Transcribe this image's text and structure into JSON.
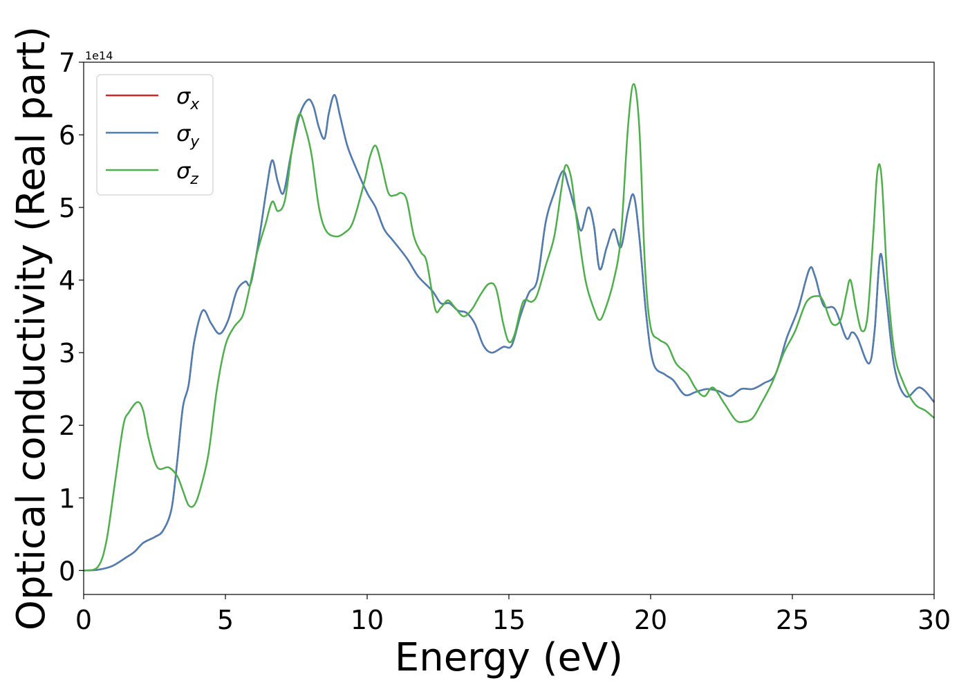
{
  "chart_data": {
    "type": "line",
    "xlabel": "Energy (eV)",
    "ylabel": "Optical conductivity (Real part)",
    "y_offset_label": "1e14",
    "xlim": [
      0,
      30
    ],
    "ylim": [
      -0.33,
      7.0
    ],
    "y_scale": 100000000000000.0,
    "x_ticks": [
      0,
      5,
      10,
      15,
      20,
      25,
      30
    ],
    "y_ticks": [
      0,
      1,
      2,
      3,
      4,
      5,
      6,
      7
    ],
    "grid": false,
    "legend_position": "top-left",
    "series": [
      {
        "name": "σx",
        "name_base": "σ",
        "name_sub": "x",
        "color": "#d62728",
        "points": [
          [
            0,
            0
          ],
          [
            0.5,
            0.01
          ],
          [
            1,
            0.06
          ],
          [
            1.5,
            0.18
          ],
          [
            1.8,
            0.26
          ],
          [
            2.1,
            0.38
          ],
          [
            2.5,
            0.46
          ],
          [
            2.8,
            0.55
          ],
          [
            3.1,
            0.85
          ],
          [
            3.3,
            1.5
          ],
          [
            3.5,
            2.25
          ],
          [
            3.7,
            2.55
          ],
          [
            3.9,
            3.15
          ],
          [
            4.2,
            3.58
          ],
          [
            4.5,
            3.4
          ],
          [
            4.8,
            3.26
          ],
          [
            5.1,
            3.45
          ],
          [
            5.4,
            3.85
          ],
          [
            5.7,
            3.98
          ],
          [
            5.9,
            3.96
          ],
          [
            6.2,
            4.6
          ],
          [
            6.45,
            5.25
          ],
          [
            6.65,
            5.65
          ],
          [
            6.85,
            5.35
          ],
          [
            7.05,
            5.2
          ],
          [
            7.3,
            5.7
          ],
          [
            7.6,
            6.25
          ],
          [
            7.9,
            6.48
          ],
          [
            8.1,
            6.4
          ],
          [
            8.3,
            6.1
          ],
          [
            8.5,
            5.95
          ],
          [
            8.65,
            6.3
          ],
          [
            8.85,
            6.55
          ],
          [
            9.05,
            6.25
          ],
          [
            9.3,
            5.85
          ],
          [
            9.6,
            5.55
          ],
          [
            10,
            5.2
          ],
          [
            10.3,
            5.0
          ],
          [
            10.6,
            4.7
          ],
          [
            10.9,
            4.55
          ],
          [
            11.4,
            4.3
          ],
          [
            11.8,
            4.05
          ],
          [
            12.3,
            3.85
          ],
          [
            12.6,
            3.68
          ],
          [
            12.9,
            3.68
          ],
          [
            13.2,
            3.58
          ],
          [
            13.5,
            3.55
          ],
          [
            13.8,
            3.4
          ],
          [
            14.1,
            3.1
          ],
          [
            14.4,
            3.0
          ],
          [
            14.8,
            3.08
          ],
          [
            15.1,
            3.1
          ],
          [
            15.4,
            3.5
          ],
          [
            15.7,
            3.82
          ],
          [
            16,
            4.0
          ],
          [
            16.3,
            4.8
          ],
          [
            16.6,
            5.2
          ],
          [
            16.9,
            5.5
          ],
          [
            17.1,
            5.3
          ],
          [
            17.35,
            4.95
          ],
          [
            17.55,
            4.68
          ],
          [
            17.8,
            5.0
          ],
          [
            18.0,
            4.75
          ],
          [
            18.2,
            4.15
          ],
          [
            18.45,
            4.45
          ],
          [
            18.7,
            4.7
          ],
          [
            18.95,
            4.45
          ],
          [
            19.2,
            4.95
          ],
          [
            19.4,
            5.17
          ],
          [
            19.6,
            4.6
          ],
          [
            19.85,
            3.5
          ],
          [
            20.1,
            2.85
          ],
          [
            20.5,
            2.7
          ],
          [
            20.8,
            2.62
          ],
          [
            21.2,
            2.42
          ],
          [
            21.6,
            2.46
          ],
          [
            22.0,
            2.5
          ],
          [
            22.4,
            2.47
          ],
          [
            22.8,
            2.4
          ],
          [
            23.2,
            2.5
          ],
          [
            23.6,
            2.5
          ],
          [
            24,
            2.58
          ],
          [
            24.4,
            2.7
          ],
          [
            24.8,
            3.2
          ],
          [
            25.2,
            3.6
          ],
          [
            25.6,
            4.15
          ],
          [
            25.8,
            4.05
          ],
          [
            26.1,
            3.65
          ],
          [
            26.5,
            3.6
          ],
          [
            26.9,
            3.2
          ],
          [
            27.1,
            3.28
          ],
          [
            27.3,
            3.2
          ],
          [
            27.7,
            2.85
          ],
          [
            27.9,
            3.3
          ],
          [
            28.1,
            4.35
          ],
          [
            28.3,
            3.8
          ],
          [
            28.6,
            2.8
          ],
          [
            29.0,
            2.4
          ],
          [
            29.5,
            2.52
          ],
          [
            30,
            2.32
          ]
        ]
      },
      {
        "name": "σy",
        "name_base": "σ",
        "name_sub": "y",
        "color": "#4a7fb5",
        "points": [
          [
            0,
            0
          ],
          [
            0.5,
            0.01
          ],
          [
            1,
            0.06
          ],
          [
            1.5,
            0.18
          ],
          [
            1.8,
            0.26
          ],
          [
            2.1,
            0.38
          ],
          [
            2.5,
            0.46
          ],
          [
            2.8,
            0.55
          ],
          [
            3.1,
            0.85
          ],
          [
            3.3,
            1.5
          ],
          [
            3.5,
            2.25
          ],
          [
            3.7,
            2.55
          ],
          [
            3.9,
            3.15
          ],
          [
            4.2,
            3.58
          ],
          [
            4.5,
            3.4
          ],
          [
            4.8,
            3.26
          ],
          [
            5.1,
            3.45
          ],
          [
            5.4,
            3.85
          ],
          [
            5.7,
            3.98
          ],
          [
            5.9,
            3.96
          ],
          [
            6.2,
            4.6
          ],
          [
            6.45,
            5.25
          ],
          [
            6.65,
            5.65
          ],
          [
            6.85,
            5.35
          ],
          [
            7.05,
            5.2
          ],
          [
            7.3,
            5.7
          ],
          [
            7.6,
            6.25
          ],
          [
            7.9,
            6.48
          ],
          [
            8.1,
            6.4
          ],
          [
            8.3,
            6.1
          ],
          [
            8.5,
            5.95
          ],
          [
            8.65,
            6.3
          ],
          [
            8.85,
            6.55
          ],
          [
            9.05,
            6.25
          ],
          [
            9.3,
            5.85
          ],
          [
            9.6,
            5.55
          ],
          [
            10,
            5.2
          ],
          [
            10.3,
            5.0
          ],
          [
            10.6,
            4.7
          ],
          [
            10.9,
            4.55
          ],
          [
            11.4,
            4.3
          ],
          [
            11.8,
            4.05
          ],
          [
            12.3,
            3.85
          ],
          [
            12.6,
            3.68
          ],
          [
            12.9,
            3.68
          ],
          [
            13.2,
            3.58
          ],
          [
            13.5,
            3.55
          ],
          [
            13.8,
            3.4
          ],
          [
            14.1,
            3.1
          ],
          [
            14.4,
            3.0
          ],
          [
            14.8,
            3.08
          ],
          [
            15.1,
            3.1
          ],
          [
            15.4,
            3.5
          ],
          [
            15.7,
            3.82
          ],
          [
            16,
            4.0
          ],
          [
            16.3,
            4.8
          ],
          [
            16.6,
            5.2
          ],
          [
            16.9,
            5.5
          ],
          [
            17.1,
            5.3
          ],
          [
            17.35,
            4.95
          ],
          [
            17.55,
            4.68
          ],
          [
            17.8,
            5.0
          ],
          [
            18.0,
            4.75
          ],
          [
            18.2,
            4.15
          ],
          [
            18.45,
            4.45
          ],
          [
            18.7,
            4.7
          ],
          [
            18.95,
            4.45
          ],
          [
            19.2,
            4.95
          ],
          [
            19.4,
            5.17
          ],
          [
            19.6,
            4.6
          ],
          [
            19.85,
            3.5
          ],
          [
            20.1,
            2.85
          ],
          [
            20.5,
            2.7
          ],
          [
            20.8,
            2.62
          ],
          [
            21.2,
            2.42
          ],
          [
            21.6,
            2.46
          ],
          [
            22.0,
            2.5
          ],
          [
            22.4,
            2.47
          ],
          [
            22.8,
            2.4
          ],
          [
            23.2,
            2.5
          ],
          [
            23.6,
            2.5
          ],
          [
            24,
            2.58
          ],
          [
            24.4,
            2.7
          ],
          [
            24.8,
            3.2
          ],
          [
            25.2,
            3.6
          ],
          [
            25.6,
            4.15
          ],
          [
            25.8,
            4.05
          ],
          [
            26.1,
            3.65
          ],
          [
            26.5,
            3.6
          ],
          [
            26.9,
            3.2
          ],
          [
            27.1,
            3.28
          ],
          [
            27.3,
            3.2
          ],
          [
            27.7,
            2.85
          ],
          [
            27.9,
            3.3
          ],
          [
            28.1,
            4.35
          ],
          [
            28.3,
            3.8
          ],
          [
            28.6,
            2.8
          ],
          [
            29.0,
            2.4
          ],
          [
            29.5,
            2.52
          ],
          [
            30,
            2.32
          ]
        ]
      },
      {
        "name": "σz",
        "name_base": "σ",
        "name_sub": "z",
        "color": "#4daf4a",
        "points": [
          [
            0,
            0
          ],
          [
            0.5,
            0.05
          ],
          [
            0.8,
            0.4
          ],
          [
            1.1,
            1.2
          ],
          [
            1.4,
            2.0
          ],
          [
            1.6,
            2.18
          ],
          [
            1.9,
            2.32
          ],
          [
            2.1,
            2.2
          ],
          [
            2.3,
            1.8
          ],
          [
            2.6,
            1.42
          ],
          [
            3.0,
            1.42
          ],
          [
            3.3,
            1.3
          ],
          [
            3.5,
            1.1
          ],
          [
            3.7,
            0.9
          ],
          [
            3.9,
            0.9
          ],
          [
            4.1,
            1.1
          ],
          [
            4.4,
            1.6
          ],
          [
            4.7,
            2.5
          ],
          [
            5.0,
            3.1
          ],
          [
            5.3,
            3.35
          ],
          [
            5.6,
            3.5
          ],
          [
            5.8,
            3.8
          ],
          [
            6.1,
            4.35
          ],
          [
            6.4,
            4.75
          ],
          [
            6.65,
            5.08
          ],
          [
            6.85,
            4.95
          ],
          [
            7.1,
            5.1
          ],
          [
            7.35,
            5.8
          ],
          [
            7.6,
            6.28
          ],
          [
            7.85,
            6.05
          ],
          [
            8.05,
            5.7
          ],
          [
            8.3,
            5.0
          ],
          [
            8.55,
            4.68
          ],
          [
            8.9,
            4.6
          ],
          [
            9.2,
            4.65
          ],
          [
            9.5,
            4.8
          ],
          [
            9.9,
            5.35
          ],
          [
            10.1,
            5.7
          ],
          [
            10.3,
            5.85
          ],
          [
            10.5,
            5.6
          ],
          [
            10.75,
            5.2
          ],
          [
            11.0,
            5.17
          ],
          [
            11.2,
            5.2
          ],
          [
            11.4,
            5.1
          ],
          [
            11.65,
            4.6
          ],
          [
            11.9,
            4.38
          ],
          [
            12.1,
            4.25
          ],
          [
            12.4,
            3.6
          ],
          [
            12.6,
            3.62
          ],
          [
            12.85,
            3.72
          ],
          [
            13.1,
            3.62
          ],
          [
            13.4,
            3.5
          ],
          [
            13.7,
            3.6
          ],
          [
            14.0,
            3.8
          ],
          [
            14.3,
            3.95
          ],
          [
            14.55,
            3.88
          ],
          [
            14.8,
            3.4
          ],
          [
            15.0,
            3.15
          ],
          [
            15.2,
            3.25
          ],
          [
            15.5,
            3.7
          ],
          [
            15.8,
            3.7
          ],
          [
            16.0,
            3.8
          ],
          [
            16.3,
            4.2
          ],
          [
            16.6,
            4.6
          ],
          [
            16.85,
            5.25
          ],
          [
            17.0,
            5.58
          ],
          [
            17.2,
            5.4
          ],
          [
            17.4,
            4.8
          ],
          [
            17.7,
            4.0
          ],
          [
            18.0,
            3.6
          ],
          [
            18.2,
            3.45
          ],
          [
            18.4,
            3.6
          ],
          [
            18.7,
            4.0
          ],
          [
            18.95,
            4.6
          ],
          [
            19.2,
            6.1
          ],
          [
            19.4,
            6.7
          ],
          [
            19.6,
            6.1
          ],
          [
            19.8,
            4.2
          ],
          [
            20.0,
            3.35
          ],
          [
            20.3,
            3.18
          ],
          [
            20.6,
            3.1
          ],
          [
            20.9,
            2.85
          ],
          [
            21.3,
            2.7
          ],
          [
            21.6,
            2.5
          ],
          [
            21.9,
            2.4
          ],
          [
            22.2,
            2.52
          ],
          [
            22.6,
            2.3
          ],
          [
            23.0,
            2.07
          ],
          [
            23.3,
            2.05
          ],
          [
            23.6,
            2.1
          ],
          [
            23.9,
            2.3
          ],
          [
            24.3,
            2.6
          ],
          [
            24.7,
            3.0
          ],
          [
            25.1,
            3.3
          ],
          [
            25.5,
            3.7
          ],
          [
            25.9,
            3.78
          ],
          [
            26.1,
            3.7
          ],
          [
            26.4,
            3.4
          ],
          [
            26.7,
            3.45
          ],
          [
            26.9,
            3.8
          ],
          [
            27.05,
            4.0
          ],
          [
            27.25,
            3.6
          ],
          [
            27.45,
            3.3
          ],
          [
            27.65,
            3.5
          ],
          [
            27.85,
            4.6
          ],
          [
            28.0,
            5.5
          ],
          [
            28.15,
            5.4
          ],
          [
            28.35,
            4.0
          ],
          [
            28.6,
            3.0
          ],
          [
            28.9,
            2.6
          ],
          [
            29.3,
            2.3
          ],
          [
            29.7,
            2.2
          ],
          [
            30,
            2.1
          ]
        ]
      }
    ]
  }
}
